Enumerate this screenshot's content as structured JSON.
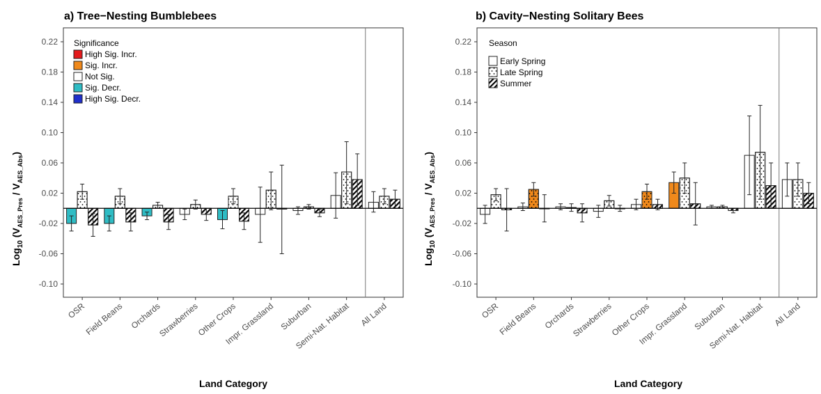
{
  "figure": {
    "panel_a_title": "a) Tree−Nesting Bumblebees",
    "panel_b_title": "b) Cavity−Nesting Solitary Bees",
    "ylabel": "Log10 (VAES_Pres / VAES_Abs)",
    "ylabel_parts": {
      "main": "Log",
      "base": "10",
      "mid": " (V",
      "sub1": "AES_Pres",
      "slash": " / V",
      "sub2": "AES_Abs",
      "close": ")"
    },
    "xlabel": "Land Category"
  },
  "legends": {
    "significance": {
      "title": "Significance",
      "items": [
        {
          "label": "High Sig. Incr.",
          "color": "#e41a1c"
        },
        {
          "label": "Sig. Incr.",
          "color": "#f0891b"
        },
        {
          "label": "Not Sig.",
          "color": "#ffffff"
        },
        {
          "label": "Sig. Decr.",
          "color": "#2fbcc4"
        },
        {
          "label": "High Sig. Decr.",
          "color": "#1f2fcc"
        }
      ]
    },
    "season": {
      "title": "Season",
      "items": [
        {
          "label": "Early Spring",
          "pattern": "plain"
        },
        {
          "label": "Late Spring",
          "pattern": "dots"
        },
        {
          "label": "Summer",
          "pattern": "stripes"
        }
      ]
    }
  },
  "chart_data": [
    {
      "type": "bar",
      "title": "a) Tree−Nesting Bumblebees",
      "xlabel": "Land Category",
      "ylabel": "Log10 (VAES_Pres / VAES_Abs)",
      "ylim": [
        -0.12,
        0.24
      ],
      "yticks": [
        -0.1,
        -0.06,
        -0.02,
        0.02,
        0.06,
        0.1,
        0.14,
        0.18,
        0.22
      ],
      "ytick_labels": [
        "-0.10",
        "-0.06",
        "-0.02",
        "0.02",
        "0.06",
        "0.10",
        "0.14",
        "0.18",
        "0.22"
      ],
      "categories": [
        "OSR",
        "Field Beans",
        "Orchards",
        "Strawberries",
        "Other Crops",
        "Impr. Grassland",
        "Suburban",
        "Semi-Nat. Habitat",
        "All Land"
      ],
      "separator_before": "All Land",
      "series": [
        {
          "name": "Early Spring",
          "values": [
            -0.02,
            -0.02,
            -0.01,
            -0.008,
            -0.015,
            -0.008,
            -0.003,
            0.017,
            0.008
          ],
          "err_low": [
            -0.03,
            -0.03,
            -0.015,
            -0.015,
            -0.027,
            -0.045,
            -0.008,
            -0.013,
            -0.005
          ],
          "err_high": [
            -0.01,
            -0.01,
            -0.005,
            -0.001,
            -0.003,
            0.028,
            0.002,
            0.047,
            0.022
          ],
          "significance": [
            "Sig. Decr.",
            "Sig. Decr.",
            "Sig. Decr.",
            "Not Sig.",
            "Sig. Decr.",
            "Not Sig.",
            "Not Sig.",
            "Not Sig.",
            "Not Sig."
          ]
        },
        {
          "name": "Late Spring",
          "values": [
            0.022,
            0.016,
            0.004,
            0.005,
            0.016,
            0.024,
            0.002,
            0.048,
            0.016
          ],
          "err_low": [
            0.012,
            0.006,
            0.0,
            -0.001,
            0.006,
            -0.002,
            -0.001,
            0.006,
            0.006
          ],
          "err_high": [
            0.032,
            0.026,
            0.008,
            0.011,
            0.026,
            0.048,
            0.005,
            0.088,
            0.026
          ],
          "significance": [
            "Not Sig.",
            "Not Sig.",
            "Not Sig.",
            "Not Sig.",
            "Not Sig.",
            "Not Sig.",
            "Not Sig.",
            "Not Sig.",
            "Not Sig."
          ]
        },
        {
          "name": "Summer",
          "values": [
            -0.022,
            -0.018,
            -0.018,
            -0.008,
            -0.017,
            -0.001,
            -0.006,
            0.038,
            0.012
          ],
          "err_low": [
            -0.037,
            -0.03,
            -0.028,
            -0.016,
            -0.028,
            -0.06,
            -0.011,
            0.004,
            0.0
          ],
          "err_high": [
            -0.007,
            -0.006,
            -0.008,
            0.0,
            -0.006,
            0.057,
            -0.001,
            0.072,
            0.024
          ],
          "significance": [
            "Not Sig.",
            "Not Sig.",
            "Not Sig.",
            "Not Sig.",
            "Not Sig.",
            "Not Sig.",
            "Not Sig.",
            "Not Sig.",
            "Not Sig."
          ]
        }
      ]
    },
    {
      "type": "bar",
      "title": "b) Cavity−Nesting Solitary Bees",
      "xlabel": "Land Category",
      "ylabel": "Log10 (VAES_Pres / VAES_Abs)",
      "ylim": [
        -0.12,
        0.24
      ],
      "yticks": [
        -0.1,
        -0.06,
        -0.02,
        0.02,
        0.06,
        0.1,
        0.14,
        0.18,
        0.22
      ],
      "ytick_labels": [
        "-0.10",
        "-0.06",
        "-0.02",
        "0.02",
        "0.06",
        "0.10",
        "0.14",
        "0.18",
        "0.22"
      ],
      "categories": [
        "OSR",
        "Field Beans",
        "Orchards",
        "Strawberries",
        "Other Crops",
        "Impr. Grassland",
        "Suburban",
        "Semi-Nat. Habitat",
        "All Land"
      ],
      "separator_before": "All Land",
      "series": [
        {
          "name": "Early Spring",
          "values": [
            -0.008,
            0.002,
            0.002,
            -0.004,
            0.005,
            0.034,
            0.002,
            0.07,
            0.038
          ],
          "err_low": [
            -0.02,
            -0.003,
            -0.002,
            -0.012,
            -0.002,
            0.02,
            0.0,
            0.018,
            0.016
          ],
          "err_high": [
            0.004,
            0.007,
            0.006,
            0.004,
            0.012,
            0.048,
            0.004,
            0.122,
            0.06
          ],
          "significance": [
            "Not Sig.",
            "Not Sig.",
            "Not Sig.",
            "Not Sig.",
            "Not Sig.",
            "Sig. Incr.",
            "Not Sig.",
            "Not Sig.",
            "Not Sig."
          ]
        },
        {
          "name": "Late Spring",
          "values": [
            0.018,
            0.025,
            0.001,
            0.01,
            0.022,
            0.04,
            0.002,
            0.074,
            0.038
          ],
          "err_low": [
            0.01,
            0.016,
            -0.004,
            0.003,
            0.012,
            0.02,
            0.0,
            0.012,
            0.016
          ],
          "err_high": [
            0.026,
            0.034,
            0.006,
            0.017,
            0.032,
            0.06,
            0.004,
            0.136,
            0.06
          ],
          "significance": [
            "Not Sig.",
            "Sig. Incr.",
            "Not Sig.",
            "Not Sig.",
            "Sig. Incr.",
            "Not Sig.",
            "Not Sig.",
            "Not Sig.",
            "Not Sig."
          ]
        },
        {
          "name": "Summer",
          "values": [
            -0.002,
            0.0,
            -0.006,
            0.0,
            0.005,
            0.006,
            -0.003,
            0.03,
            0.02
          ],
          "err_low": [
            -0.03,
            -0.018,
            -0.018,
            -0.004,
            -0.002,
            -0.022,
            -0.006,
            0.0,
            0.006
          ],
          "err_high": [
            0.026,
            0.018,
            0.006,
            0.004,
            0.012,
            0.034,
            0.0,
            0.06,
            0.034
          ],
          "significance": [
            "Not Sig.",
            "Not Sig.",
            "Not Sig.",
            "Not Sig.",
            "Not Sig.",
            "Not Sig.",
            "Not Sig.",
            "Not Sig.",
            "Not Sig."
          ]
        }
      ]
    }
  ]
}
